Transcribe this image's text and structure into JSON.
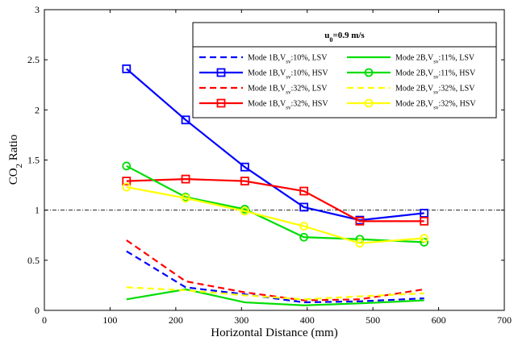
{
  "chart_data": {
    "type": "line",
    "title": "",
    "xlabel": "Horizontal Distance (mm)",
    "ylabel": "CO2 Ratio",
    "xlim": [
      0,
      700
    ],
    "ylim": [
      0,
      3
    ],
    "xticks": [
      "0",
      "100",
      "200",
      "300",
      "400",
      "500",
      "600",
      "700"
    ],
    "yticks": [
      "0",
      "0.5",
      "1",
      "1.5",
      "2",
      "2.5",
      "3"
    ],
    "grid": false,
    "reference_line": {
      "y": 1,
      "style": "dash-dot",
      "color": "#000000"
    },
    "legend": {
      "placement": "top-right",
      "title": "u0=0.9 m/s",
      "title_parts": {
        "base": "u",
        "sub": "0",
        "rest": "=0.9 m/s"
      }
    },
    "series": [
      {
        "name": "Mode 1B,Vsv:10%, LSV",
        "label_parts": {
          "pre": "Mode 1B,V",
          "sub": "sv",
          "post": ":10%, LSV"
        },
        "color": "#0000ff",
        "style": "dashed",
        "marker": "none",
        "x": [
          125,
          215,
          305,
          395,
          480,
          578
        ],
        "y": [
          0.59,
          0.23,
          0.16,
          0.08,
          0.09,
          0.12
        ]
      },
      {
        "name": "Mode 1B,Vsv:10%, HSV",
        "label_parts": {
          "pre": "Mode 1B,V",
          "sub": "sv",
          "post": ":10%, HSV"
        },
        "color": "#0000ff",
        "style": "solid",
        "marker": "square",
        "x": [
          125,
          215,
          305,
          395,
          480,
          578
        ],
        "y": [
          2.41,
          1.9,
          1.43,
          1.03,
          0.9,
          0.97
        ]
      },
      {
        "name": "Mode 1B,Vsv:32%, LSV",
        "label_parts": {
          "pre": "Mode 1B,V",
          "sub": "sv",
          "post": ":32%, LSV"
        },
        "color": "#ff0000",
        "style": "dashed",
        "marker": "none",
        "x": [
          125,
          215,
          305,
          395,
          480,
          578
        ],
        "y": [
          0.7,
          0.29,
          0.18,
          0.1,
          0.11,
          0.21
        ]
      },
      {
        "name": "Mode 1B,Vsv:32%, HSV",
        "label_parts": {
          "pre": "Mode 1B,V",
          "sub": "sv",
          "post": ":32%, HSV"
        },
        "color": "#ff0000",
        "style": "solid",
        "marker": "square",
        "x": [
          125,
          215,
          305,
          395,
          480,
          578
        ],
        "y": [
          1.29,
          1.31,
          1.29,
          1.19,
          0.89,
          0.89
        ]
      },
      {
        "name": "Mode 2B,Vsv:11%, LSV",
        "label_parts": {
          "pre": "Mode 2B,V",
          "sub": "sv",
          "post": ":11%, LSV"
        },
        "color": "#00dd00",
        "style": "solid",
        "marker": "none",
        "x": [
          125,
          215,
          305,
          395,
          480,
          578
        ],
        "y": [
          0.11,
          0.21,
          0.08,
          0.05,
          0.07,
          0.1
        ]
      },
      {
        "name": "Mode 2B,Vsv:11%, HSV",
        "label_parts": {
          "pre": "Mode 2B,V",
          "sub": "sv",
          "post": ":11%, HSV"
        },
        "color": "#00dd00",
        "style": "solid",
        "marker": "circle",
        "x": [
          125,
          215,
          305,
          395,
          480,
          578
        ],
        "y": [
          1.44,
          1.13,
          1.01,
          0.73,
          0.71,
          0.68
        ]
      },
      {
        "name": "Mode 2B,Vsv:32%, LSV",
        "label_parts": {
          "pre": "Mode 2B,V",
          "sub": "sv",
          "post": ":32%, LSV"
        },
        "color": "#ffff00",
        "style": "dashed",
        "marker": "none",
        "x": [
          125,
          215,
          305,
          395,
          480,
          578
        ],
        "y": [
          0.23,
          0.2,
          0.15,
          0.11,
          0.14,
          0.17
        ]
      },
      {
        "name": "Mode 2B,Vsv:32%, HSV",
        "label_parts": {
          "pre": "Mode 2B,V",
          "sub": "sv",
          "post": ":32%, HSV"
        },
        "color": "#ffff00",
        "style": "solid",
        "marker": "circle",
        "x": [
          125,
          215,
          305,
          395,
          480,
          578
        ],
        "y": [
          1.23,
          1.12,
          0.99,
          0.84,
          0.67,
          0.72
        ]
      }
    ]
  }
}
